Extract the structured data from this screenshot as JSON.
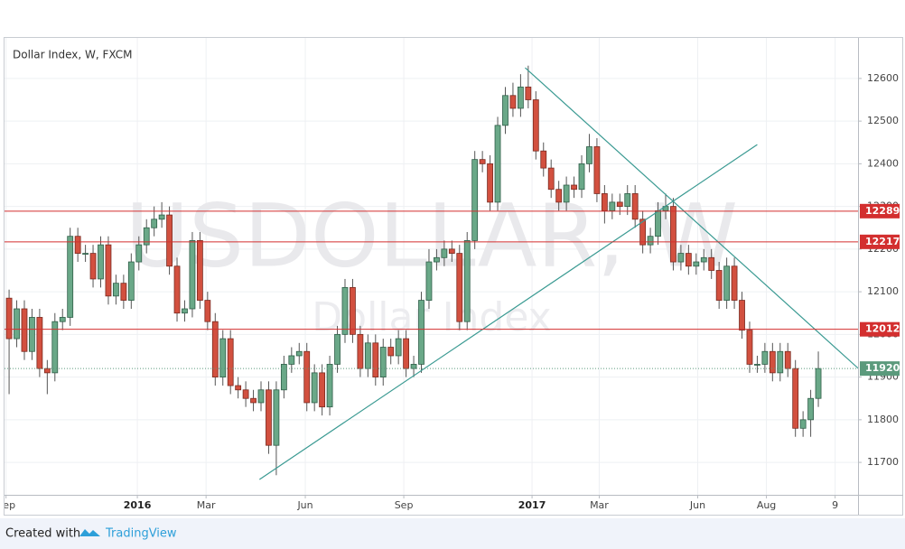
{
  "chart_data": {
    "type": "candlestick",
    "title": "Dollar Index, W, FXCM",
    "watermark": {
      "symbol": "USDOLLAR, W",
      "name": "Dollar Index"
    },
    "open": [
      12085,
      11990,
      12060,
      11960,
      12040,
      11920,
      11910,
      12030,
      12040,
      12230,
      12190,
      12190,
      12130,
      12210,
      12090,
      12120,
      12080,
      12170,
      12210,
      12250,
      12270,
      12280,
      12160,
      12050,
      12060,
      12220,
      12080,
      12030,
      11900,
      11990,
      11880,
      11870,
      11850,
      11840,
      11870,
      11740,
      11870,
      11930,
      11950,
      11960,
      11840,
      11910,
      11830,
      11930,
      12000,
      12110,
      12000,
      11920,
      11980,
      11900,
      11970,
      11950,
      11990,
      11920,
      11930,
      12080,
      12170,
      12180,
      12200,
      12190,
      12030,
      12220,
      12410,
      12400,
      12310,
      12490,
      12560,
      12530,
      12580,
      12550,
      12430,
      12390,
      12340,
      12310,
      12350,
      12340,
      12400,
      12440,
      12330,
      12290,
      12310,
      12300,
      12330,
      12270,
      12210,
      12230,
      12290,
      12300,
      12170,
      12190,
      12160,
      12170,
      12180,
      12150,
      12080,
      12160,
      12080,
      12010,
      11930,
      11930,
      11960,
      11910,
      11960,
      11920,
      11780,
      11800,
      11850
    ],
    "high": [
      12105,
      12080,
      12080,
      12060,
      12060,
      11940,
      12050,
      12060,
      12250,
      12250,
      12210,
      12210,
      12230,
      12230,
      12140,
      12140,
      12190,
      12230,
      12270,
      12300,
      12310,
      12300,
      12180,
      12080,
      12240,
      12240,
      12100,
      12050,
      12010,
      12010,
      11900,
      11890,
      11870,
      11890,
      11890,
      11890,
      11950,
      11970,
      11980,
      11980,
      11930,
      11930,
      11950,
      12020,
      12130,
      12130,
      12020,
      12000,
      12000,
      11990,
      11990,
      12010,
      12010,
      11950,
      12100,
      12200,
      12200,
      12220,
      12220,
      12210,
      12240,
      12430,
      12430,
      12420,
      12510,
      12580,
      12590,
      12610,
      12630,
      12570,
      12450,
      12410,
      12360,
      12370,
      12370,
      12420,
      12470,
      12460,
      12350,
      12330,
      12330,
      12350,
      12350,
      12290,
      12250,
      12310,
      12330,
      12320,
      12210,
      12210,
      12190,
      12200,
      12200,
      12170,
      12180,
      12180,
      12100,
      12030,
      11950,
      11980,
      11980,
      11980,
      11980,
      11940,
      11820,
      11870,
      11960
    ],
    "low": [
      11860,
      11970,
      11940,
      11940,
      11900,
      11860,
      11890,
      12010,
      12020,
      12170,
      12170,
      12110,
      12110,
      12070,
      12070,
      12060,
      12060,
      12150,
      12190,
      12230,
      12250,
      12140,
      12030,
      12030,
      12040,
      12060,
      12010,
      11880,
      11880,
      11860,
      11850,
      11830,
      11820,
      11820,
      11720,
      11670,
      11850,
      11910,
      11930,
      11820,
      11820,
      11810,
      11810,
      11910,
      11980,
      11980,
      11900,
      11900,
      11880,
      11880,
      11930,
      11930,
      11900,
      11900,
      11910,
      12060,
      12150,
      12160,
      12170,
      12010,
      12010,
      12200,
      12380,
      12290,
      12290,
      12470,
      12510,
      12510,
      12530,
      12410,
      12370,
      12320,
      12290,
      12290,
      12320,
      12320,
      12380,
      12310,
      12260,
      12270,
      12280,
      12280,
      12250,
      12190,
      12190,
      12210,
      12270,
      12150,
      12150,
      12140,
      12140,
      12150,
      12130,
      12060,
      12060,
      12060,
      11990,
      11910,
      11910,
      11910,
      11890,
      11890,
      11900,
      11760,
      11760,
      11760,
      11830
    ],
    "close": [
      11990,
      12060,
      11960,
      12040,
      11920,
      11910,
      12030,
      12040,
      12230,
      12190,
      12190,
      12130,
      12210,
      12090,
      12120,
      12080,
      12170,
      12210,
      12250,
      12270,
      12280,
      12160,
      12050,
      12060,
      12220,
      12080,
      12030,
      11900,
      11990,
      11880,
      11870,
      11850,
      11840,
      11870,
      11740,
      11870,
      11930,
      11950,
      11960,
      11840,
      11910,
      11830,
      11930,
      12000,
      12110,
      12000,
      11920,
      11980,
      11900,
      11970,
      11950,
      11990,
      11920,
      11930,
      12080,
      12170,
      12180,
      12200,
      12190,
      12030,
      12220,
      12410,
      12400,
      12310,
      12490,
      12560,
      12530,
      12580,
      12550,
      12430,
      12390,
      12340,
      12310,
      12350,
      12340,
      12400,
      12440,
      12330,
      12290,
      12310,
      12300,
      12330,
      12270,
      12210,
      12230,
      12290,
      12300,
      12170,
      12190,
      12160,
      12170,
      12180,
      12150,
      12080,
      12160,
      12080,
      12010,
      11930,
      11930,
      11960,
      11910,
      11960,
      11920,
      11780,
      11800,
      11850,
      11920
    ],
    "up_color": "#6aa888",
    "down_color": "#d2503f",
    "xlim": [
      -0.6,
      111.2
    ],
    "xticks": [
      {
        "value": -0.4,
        "label": "Sep"
      },
      {
        "value": 16.8,
        "label": "2016"
      },
      {
        "value": 25.8,
        "label": "Mar"
      },
      {
        "value": 38.8,
        "label": "Jun"
      },
      {
        "value": 51.7,
        "label": "Sep"
      },
      {
        "value": 68.5,
        "label": "2017"
      },
      {
        "value": 77.3,
        "label": "Mar"
      },
      {
        "value": 90.2,
        "label": "Jun"
      },
      {
        "value": 99.2,
        "label": "Aug"
      },
      {
        "value": 108.2,
        "label": "9"
      }
    ],
    "ylim": [
      11624,
      12695
    ],
    "yticks": [
      11700,
      11800,
      11900,
      12000,
      12100,
      12200,
      12300,
      12400,
      12500,
      12600
    ],
    "grid": true,
    "price_lines": [
      {
        "value": 12289,
        "color": "#d32f2f"
      },
      {
        "value": 12217,
        "color": "#d32f2f"
      },
      {
        "value": 12012,
        "color": "#d32f2f"
      }
    ],
    "last_price": {
      "value": 11920,
      "color": "#5b9a7c"
    },
    "trendlines": [
      {
        "from": [
          32.8,
          11660
        ],
        "to": [
          98.0,
          12445
        ],
        "color": "#3a9a92"
      },
      {
        "from": [
          67.6,
          12625
        ],
        "to": [
          111.5,
          11916
        ],
        "color": "#3a9a92"
      }
    ]
  },
  "footer": {
    "text": "Created with",
    "brand": "TradingView"
  }
}
